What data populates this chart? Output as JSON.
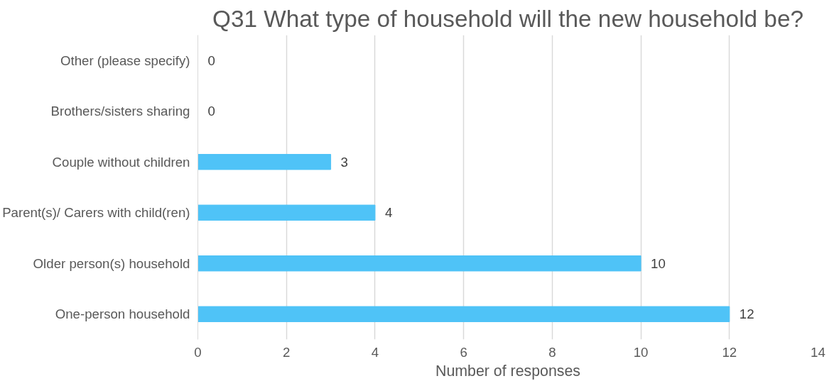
{
  "chart_data": {
    "type": "bar",
    "orientation": "horizontal",
    "title": "Q31 What type of household will the new household be?",
    "xlabel": "Number of responses",
    "categories": [
      "Other (please specify)",
      "Brothers/sisters sharing",
      "Couple without children",
      "Parent(s)/ Carers with child(ren)",
      "Older person(s) household",
      "One-person household"
    ],
    "values": [
      0,
      0,
      3,
      4,
      10,
      12
    ],
    "color": "#4fc3f7",
    "xlim": [
      0,
      14
    ],
    "xticks": [
      0,
      2,
      4,
      6,
      8,
      10,
      12,
      14
    ],
    "grid": "x",
    "data_labels": true
  }
}
